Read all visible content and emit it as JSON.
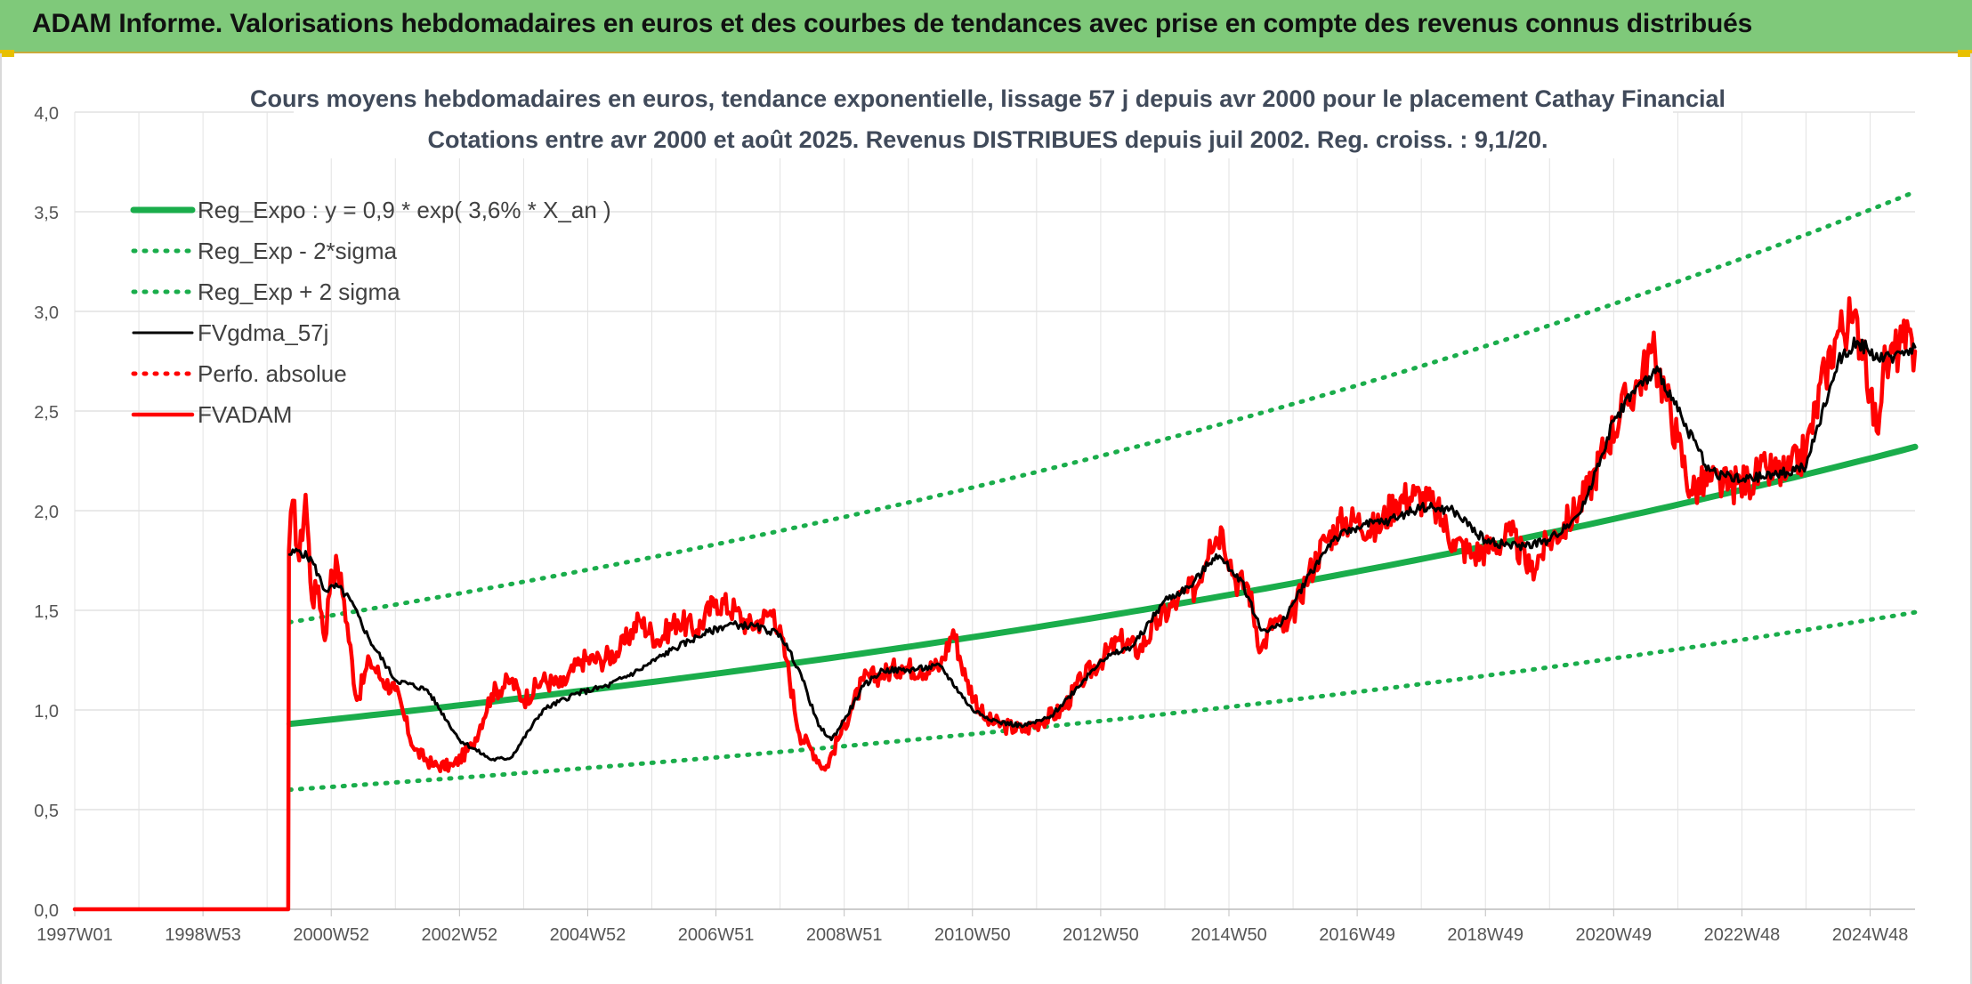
{
  "banner": {
    "title": "ADAM Informe. Valorisations hebdomadaires en euros et des courbes de tendances avec prise en compte des revenus connus distribués"
  },
  "colors": {
    "banner_bg": "#7fc97a",
    "trend": "#1aad4b",
    "price": "#ff0000",
    "smoothed": "#000000",
    "grid": "#dcdcdc"
  },
  "chart_data": {
    "type": "line",
    "title": "Cours moyens hebdomadaires en euros, tendance exponentielle, lissage 57 j depuis avr 2000 pour le placement Cathay Financial",
    "subtitle": "Cotations entre avr 2000 et août 2025. Revenus DISTRIBUES depuis juil 2002. Reg. croiss. : 9,1/20.",
    "xlabel": "",
    "ylabel": "",
    "x_range": [
      1997.0,
      2025.7
    ],
    "ylim": [
      0,
      4
    ],
    "yticks": [
      "0,0",
      "0,5",
      "1,0",
      "1,5",
      "2,0",
      "2,5",
      "3,0",
      "3,5",
      "4,0"
    ],
    "xticks": [
      {
        "x": 1997.0,
        "label": "1997W01"
      },
      {
        "x": 1999.0,
        "label": "1998W53"
      },
      {
        "x": 2001.0,
        "label": "2000W52"
      },
      {
        "x": 2003.0,
        "label": "2002W52"
      },
      {
        "x": 2005.0,
        "label": "2004W52"
      },
      {
        "x": 2007.0,
        "label": "2006W51"
      },
      {
        "x": 2009.0,
        "label": "2008W51"
      },
      {
        "x": 2011.0,
        "label": "2010W50"
      },
      {
        "x": 2013.0,
        "label": "2012W50"
      },
      {
        "x": 2015.0,
        "label": "2014W50"
      },
      {
        "x": 2017.0,
        "label": "2016W49"
      },
      {
        "x": 2019.0,
        "label": "2018W49"
      },
      {
        "x": 2021.0,
        "label": "2020W49"
      },
      {
        "x": 2023.0,
        "label": "2022W48"
      },
      {
        "x": 2025.0,
        "label": "2024W48"
      }
    ],
    "grid": true,
    "legend_position": "top-left",
    "series": [
      {
        "name": "Reg_Expo : y = 0,9 * exp( 3,6% *  X_an )",
        "style": "solid-thick",
        "color": "#1aad4b",
        "x": [
          2000.35,
          2005,
          2010,
          2015,
          2020,
          2025.7
        ],
        "y": [
          0.93,
          1.1,
          1.31,
          1.57,
          1.9,
          2.32
        ]
      },
      {
        "name": "Reg_Exp - 2*sigma",
        "style": "dotted",
        "color": "#1aad4b",
        "x": [
          2000.35,
          2005,
          2010,
          2015,
          2020,
          2025.7
        ],
        "y": [
          0.6,
          0.71,
          0.84,
          1.0,
          1.21,
          1.49
        ]
      },
      {
        "name": "Reg_Exp + 2 sigma",
        "style": "dotted",
        "color": "#1aad4b",
        "x": [
          2000.35,
          2005,
          2010,
          2015,
          2020,
          2025.7
        ],
        "y": [
          1.44,
          1.71,
          2.05,
          2.47,
          2.98,
          3.6
        ]
      },
      {
        "name": "FVgdma_57j",
        "style": "solid-thin",
        "color": "#000000",
        "x": [
          2000.35,
          2000.5,
          2000.7,
          2000.9,
          2001.1,
          2001.3,
          2001.6,
          2002.0,
          2002.5,
          2003.0,
          2003.5,
          2003.8,
          2004.3,
          2004.8,
          2005.3,
          2005.8,
          2006.3,
          2006.8,
          2007.2,
          2007.6,
          2008.0,
          2008.3,
          2008.6,
          2008.8,
          2009.0,
          2009.3,
          2009.6,
          2010.0,
          2010.5,
          2011.0,
          2011.4,
          2011.8,
          2012.2,
          2012.6,
          2013.0,
          2013.5,
          2014.0,
          2014.4,
          2014.8,
          2015.2,
          2015.5,
          2015.8,
          2016.2,
          2016.6,
          2017.0,
          2017.5,
          2018.0,
          2018.5,
          2019.0,
          2019.5,
          2020.0,
          2020.5,
          2021.0,
          2021.3,
          2021.7,
          2022.0,
          2022.5,
          2023.0,
          2023.5,
          2024.0,
          2024.5,
          2024.8,
          2025.2,
          2025.5,
          2025.7
        ],
        "y": [
          1.78,
          1.8,
          1.75,
          1.6,
          1.62,
          1.55,
          1.35,
          1.15,
          1.1,
          0.85,
          0.75,
          0.76,
          1.0,
          1.08,
          1.12,
          1.2,
          1.3,
          1.38,
          1.43,
          1.42,
          1.38,
          1.2,
          0.92,
          0.85,
          0.95,
          1.12,
          1.2,
          1.2,
          1.22,
          1.0,
          0.94,
          0.92,
          0.96,
          1.1,
          1.25,
          1.32,
          1.55,
          1.62,
          1.78,
          1.65,
          1.4,
          1.42,
          1.65,
          1.85,
          1.92,
          1.95,
          2.02,
          2.0,
          1.85,
          1.82,
          1.85,
          2.0,
          2.45,
          2.6,
          2.7,
          2.5,
          2.2,
          2.15,
          2.18,
          2.22,
          2.75,
          2.85,
          2.75,
          2.8,
          2.82
        ]
      },
      {
        "name": "Perfo. absolue",
        "style": "dotted",
        "color": "#ff0000",
        "x": [],
        "y": []
      },
      {
        "name": "FVADAM",
        "style": "solid-thick",
        "color": "#ff0000",
        "x": [
          1997.0,
          2000.33,
          2000.34,
          2000.4,
          2000.5,
          2000.6,
          2000.7,
          2000.8,
          2000.9,
          2001.0,
          2001.1,
          2001.2,
          2001.4,
          2001.6,
          2001.8,
          2002.0,
          2002.3,
          2002.6,
          2002.9,
          2003.2,
          2003.5,
          2003.8,
          2004.0,
          2004.3,
          2004.6,
          2004.9,
          2005.2,
          2005.5,
          2005.8,
          2006.1,
          2006.4,
          2006.7,
          2007.0,
          2007.3,
          2007.5,
          2007.7,
          2007.9,
          2008.1,
          2008.3,
          2008.5,
          2008.7,
          2008.9,
          2009.1,
          2009.3,
          2009.6,
          2009.9,
          2010.2,
          2010.5,
          2010.7,
          2010.9,
          2011.2,
          2011.5,
          2011.8,
          2012.1,
          2012.4,
          2012.7,
          2013.0,
          2013.3,
          2013.6,
          2013.9,
          2014.2,
          2014.5,
          2014.7,
          2014.9,
          2015.1,
          2015.3,
          2015.5,
          2015.7,
          2015.9,
          2016.2,
          2016.5,
          2016.8,
          2017.0,
          2017.3,
          2017.6,
          2017.9,
          2018.2,
          2018.5,
          2018.8,
          2019.1,
          2019.4,
          2019.7,
          2020.0,
          2020.3,
          2020.6,
          2020.9,
          2021.2,
          2021.4,
          2021.6,
          2021.8,
          2022.0,
          2022.2,
          2022.5,
          2022.8,
          2023.1,
          2023.4,
          2023.7,
          2024.0,
          2024.3,
          2024.5,
          2024.7,
          2024.9,
          2025.0,
          2025.1,
          2025.2,
          2025.3,
          2025.5,
          2025.7
        ],
        "y": [
          0.0,
          0.0,
          1.8,
          2.05,
          1.75,
          2.08,
          1.55,
          1.62,
          1.35,
          1.7,
          1.72,
          1.55,
          1.05,
          1.25,
          1.15,
          1.1,
          0.8,
          0.72,
          0.72,
          0.82,
          1.08,
          1.15,
          1.05,
          1.15,
          1.12,
          1.25,
          1.25,
          1.3,
          1.45,
          1.35,
          1.45,
          1.4,
          1.55,
          1.5,
          1.42,
          1.45,
          1.5,
          1.25,
          0.88,
          0.8,
          0.7,
          0.85,
          1.0,
          1.15,
          1.18,
          1.22,
          1.2,
          1.22,
          1.4,
          1.15,
          0.95,
          0.92,
          0.9,
          0.95,
          1.0,
          1.15,
          1.25,
          1.35,
          1.3,
          1.45,
          1.55,
          1.62,
          1.85,
          1.9,
          1.65,
          1.62,
          1.3,
          1.45,
          1.4,
          1.65,
          1.85,
          1.95,
          1.95,
          1.9,
          2.05,
          2.08,
          2.02,
          1.85,
          1.78,
          1.82,
          1.88,
          1.7,
          1.85,
          1.95,
          2.1,
          2.35,
          2.55,
          2.65,
          2.8,
          2.6,
          2.35,
          2.1,
          2.15,
          2.12,
          2.15,
          2.2,
          2.18,
          2.3,
          2.7,
          2.9,
          2.95,
          2.85,
          2.6,
          2.4,
          2.7,
          2.75,
          2.85,
          2.8
        ]
      }
    ]
  }
}
